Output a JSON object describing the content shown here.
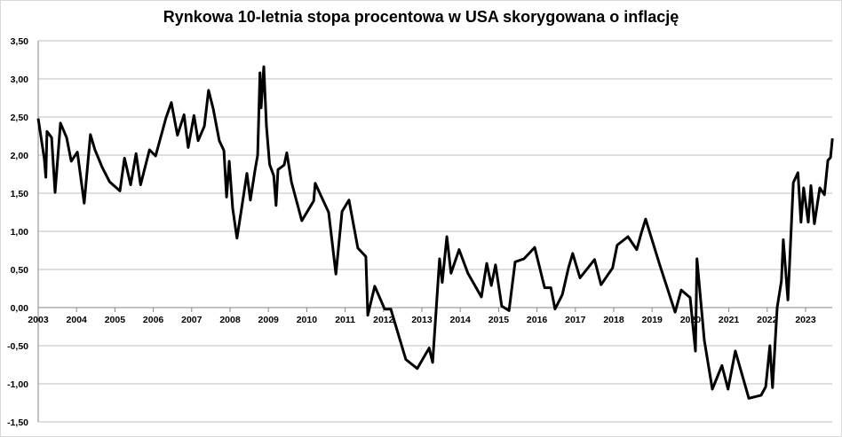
{
  "chart_data": {
    "type": "line",
    "title": "Rynkowa 10-letnia stopa procentowa w USA skorygowana o inflację",
    "xlabel": "",
    "ylabel": "",
    "ylim": [
      -1.5,
      3.5
    ],
    "xlim": [
      2003,
      2023.7
    ],
    "yticks": [
      "3,50",
      "3,00",
      "2,50",
      "2,00",
      "1,50",
      "1,00",
      "0,50",
      "0,00",
      "-0,50",
      "-1,00",
      "-1,50"
    ],
    "ytick_values": [
      3.5,
      3.0,
      2.5,
      2.0,
      1.5,
      1.0,
      0.5,
      0.0,
      -0.5,
      -1.0,
      -1.5
    ],
    "xticks": [
      "2003",
      "2004",
      "2005",
      "2006",
      "2007",
      "2008",
      "2009",
      "2010",
      "2011",
      "2012",
      "2013",
      "2014",
      "2015",
      "2016",
      "2017",
      "2018",
      "2019",
      "2020",
      "2021",
      "2022",
      "2023"
    ],
    "grid": true,
    "line_color": "#000000",
    "grid_color": "#bfbfbf",
    "series": [
      {
        "x": [
          2003.0,
          2003.16,
          2003.2,
          2003.23,
          2003.35,
          2003.44,
          2003.58,
          2003.74,
          2003.86,
          2004.02,
          2004.2,
          2004.36,
          2004.48,
          2004.67,
          2004.86,
          2005.13,
          2005.25,
          2005.41,
          2005.55,
          2005.67,
          2005.9,
          2006.06,
          2006.33,
          2006.47,
          2006.63,
          2006.8,
          2006.91,
          2007.06,
          2007.17,
          2007.33,
          2007.44,
          2007.56,
          2007.72,
          2007.84,
          2007.91,
          2007.98,
          2008.07,
          2008.18,
          2008.3,
          2008.44,
          2008.53,
          2008.65,
          2008.72,
          2008.78,
          2008.81,
          2008.88,
          2008.95,
          2009.03,
          2009.14,
          2009.2,
          2009.25,
          2009.41,
          2009.48,
          2009.6,
          2009.87,
          2010.18,
          2010.22,
          2010.57,
          2010.76,
          2010.92,
          2011.1,
          2011.33,
          2011.54,
          2011.59,
          2011.77,
          2012.03,
          2012.19,
          2012.58,
          2012.88,
          2013.19,
          2013.28,
          2013.46,
          2013.53,
          2013.65,
          2013.76,
          2013.97,
          2014.2,
          2014.55,
          2014.69,
          2014.81,
          2014.92,
          2015.08,
          2015.27,
          2015.43,
          2015.66,
          2015.94,
          2016.2,
          2016.36,
          2016.47,
          2016.66,
          2016.82,
          2016.93,
          2017.12,
          2017.5,
          2017.67,
          2017.97,
          2018.09,
          2018.37,
          2018.6,
          2018.72,
          2018.83,
          2019.2,
          2019.6,
          2019.76,
          2019.99,
          2020.13,
          2020.17,
          2020.36,
          2020.57,
          2020.82,
          2020.98,
          2021.17,
          2021.52,
          2021.84,
          2021.96,
          2022.07,
          2022.14,
          2022.26,
          2022.37,
          2022.42,
          2022.54,
          2022.68,
          2022.8,
          2022.88,
          2022.95,
          2023.07,
          2023.14,
          2023.23,
          2023.37,
          2023.49,
          2023.58,
          2023.65,
          2023.7
        ],
        "y": [
          2.48,
          1.95,
          1.71,
          2.31,
          2.23,
          1.51,
          2.42,
          2.23,
          1.92,
          2.04,
          1.37,
          2.27,
          2.07,
          1.84,
          1.65,
          1.53,
          1.96,
          1.61,
          2.02,
          1.61,
          2.07,
          1.99,
          2.49,
          2.69,
          2.26,
          2.53,
          2.1,
          2.52,
          2.19,
          2.38,
          2.85,
          2.61,
          2.19,
          2.06,
          1.45,
          1.92,
          1.3,
          0.91,
          1.3,
          1.76,
          1.41,
          1.8,
          2.0,
          3.08,
          2.62,
          3.16,
          2.38,
          1.88,
          1.73,
          1.34,
          1.81,
          1.87,
          2.03,
          1.65,
          1.14,
          1.4,
          1.63,
          1.25,
          0.44,
          1.26,
          1.41,
          0.78,
          0.67,
          -0.1,
          0.28,
          -0.02,
          -0.02,
          -0.68,
          -0.8,
          -0.53,
          -0.72,
          0.64,
          0.33,
          0.93,
          0.45,
          0.76,
          0.45,
          0.14,
          0.58,
          0.29,
          0.56,
          0.02,
          -0.04,
          0.6,
          0.64,
          0.79,
          0.26,
          0.26,
          -0.02,
          0.17,
          0.52,
          0.71,
          0.39,
          0.63,
          0.3,
          0.52,
          0.82,
          0.93,
          0.76,
          0.98,
          1.16,
          0.56,
          -0.06,
          0.23,
          0.13,
          -0.57,
          0.64,
          -0.43,
          -1.07,
          -0.76,
          -1.07,
          -0.57,
          -1.19,
          -1.15,
          -1.04,
          -0.5,
          -1.05,
          0.0,
          0.35,
          0.89,
          0.1,
          1.64,
          1.77,
          1.12,
          1.57,
          1.12,
          1.6,
          1.1,
          1.57,
          1.48,
          1.93,
          1.97,
          2.22
        ]
      }
    ]
  }
}
